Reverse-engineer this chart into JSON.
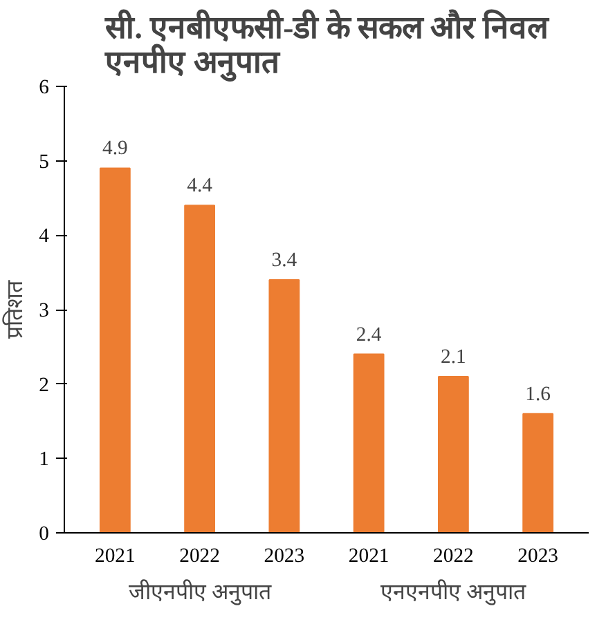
{
  "chart_data": {
    "type": "bar",
    "title": "सी. एनबीएफसी-डी के सकल और निवल\nएनपीए अनुपात",
    "ylabel": "प्रतिशत",
    "categories": [
      "2021",
      "2022",
      "2023",
      "2021",
      "2022",
      "2023"
    ],
    "values": [
      4.9,
      4.4,
      3.4,
      2.4,
      2.1,
      1.6
    ],
    "color": "#ed7d31",
    "data_labels": true,
    "annotations": [
      "जीएनपीए अनुपात",
      "एनएनपीए अनुपात"
    ],
    "ylim": [
      0,
      6
    ],
    "yticks": [
      0,
      1,
      2,
      3,
      4,
      5,
      6
    ],
    "grid": false
  }
}
